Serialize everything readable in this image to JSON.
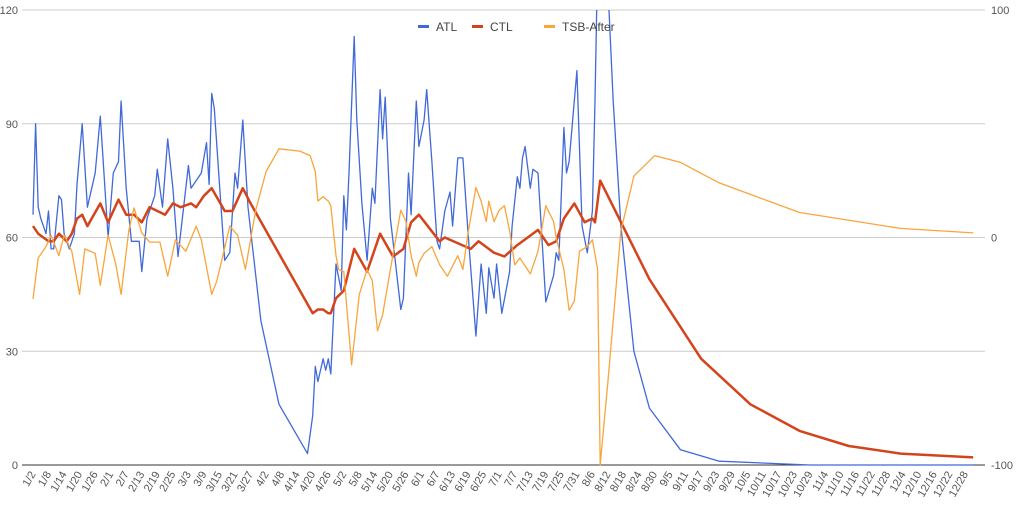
{
  "chart_data": {
    "type": "line",
    "title": "",
    "legend_position": "top",
    "x_unit": "day offset from 1/2",
    "x_tick_labels": [
      "1/2",
      "1/8",
      "1/14",
      "1/20",
      "1/26",
      "2/1",
      "2/7",
      "2/13",
      "2/19",
      "2/25",
      "3/3",
      "3/9",
      "3/15",
      "3/21",
      "3/27",
      "4/2",
      "4/8",
      "4/14",
      "4/20",
      "4/26",
      "5/2",
      "5/8",
      "5/14",
      "5/20",
      "5/26",
      "6/1",
      "6/7",
      "6/13",
      "6/19",
      "6/25",
      "7/1",
      "7/7",
      "7/13",
      "7/19",
      "7/25",
      "7/31",
      "8/6",
      "8/12",
      "8/18",
      "8/24",
      "8/30",
      "9/5",
      "9/11",
      "9/17",
      "9/23",
      "9/29",
      "10/5",
      "10/11",
      "10/17",
      "10/23",
      "10/29",
      "11/4",
      "11/10",
      "11/16",
      "11/22",
      "11/28",
      "12/4",
      "12/10",
      "12/16",
      "12/22",
      "12/28"
    ],
    "x_tick_step_days": 6,
    "y_left": {
      "ylim": [
        0,
        120
      ],
      "ticks": [
        "0",
        "30",
        "60",
        "90",
        "120"
      ],
      "tick_values": [
        0,
        30,
        60,
        90,
        120
      ]
    },
    "y_right": {
      "ylim": [
        -100,
        100
      ],
      "ticks": [
        "-100",
        "0",
        "100"
      ],
      "tick_values": [
        -100,
        0,
        100
      ]
    },
    "grid": true,
    "series": [
      {
        "name": "ATL",
        "axis": "left",
        "color": "#4169d8",
        "points": [
          [
            0,
            66
          ],
          [
            1,
            90
          ],
          [
            2,
            68
          ],
          [
            3,
            65
          ],
          [
            5,
            61
          ],
          [
            6,
            67
          ],
          [
            7,
            57
          ],
          [
            8,
            57
          ],
          [
            10,
            71
          ],
          [
            11,
            70
          ],
          [
            12,
            61
          ],
          [
            14,
            57
          ],
          [
            16,
            61
          ],
          [
            17,
            74
          ],
          [
            19,
            90
          ],
          [
            21,
            68
          ],
          [
            24,
            77
          ],
          [
            26,
            92
          ],
          [
            29,
            60
          ],
          [
            31,
            77
          ],
          [
            33,
            80
          ],
          [
            34,
            96
          ],
          [
            36,
            73
          ],
          [
            38,
            59
          ],
          [
            41,
            59
          ],
          [
            42,
            51
          ],
          [
            44,
            65
          ],
          [
            47,
            71
          ],
          [
            48,
            78
          ],
          [
            50,
            68
          ],
          [
            52,
            86
          ],
          [
            54,
            73
          ],
          [
            56,
            55
          ],
          [
            60,
            79
          ],
          [
            61,
            73
          ],
          [
            63,
            75
          ],
          [
            65,
            77
          ],
          [
            67,
            85
          ],
          [
            68,
            74
          ],
          [
            69,
            98
          ],
          [
            70,
            94
          ],
          [
            74,
            54
          ],
          [
            76,
            56
          ],
          [
            78,
            77
          ],
          [
            79,
            73
          ],
          [
            81,
            91
          ],
          [
            83,
            68
          ],
          [
            88,
            38
          ],
          [
            95,
            16
          ],
          [
            106,
            3
          ],
          [
            108,
            13
          ],
          [
            109,
            26
          ],
          [
            110,
            22
          ],
          [
            112,
            28
          ],
          [
            113,
            25
          ],
          [
            114,
            28
          ],
          [
            115,
            24
          ],
          [
            117,
            53
          ],
          [
            119,
            46
          ],
          [
            120,
            71
          ],
          [
            121,
            62
          ],
          [
            122,
            77
          ],
          [
            124,
            113
          ],
          [
            125,
            91
          ],
          [
            127,
            69
          ],
          [
            129,
            54
          ],
          [
            131,
            73
          ],
          [
            132,
            69
          ],
          [
            134,
            99
          ],
          [
            135,
            86
          ],
          [
            136,
            97
          ],
          [
            138,
            65
          ],
          [
            142,
            41
          ],
          [
            143,
            44
          ],
          [
            145,
            77
          ],
          [
            146,
            66
          ],
          [
            148,
            96
          ],
          [
            149,
            84
          ],
          [
            151,
            91
          ],
          [
            152,
            99
          ],
          [
            154,
            80
          ],
          [
            156,
            59
          ],
          [
            157,
            57
          ],
          [
            159,
            67
          ],
          [
            161,
            72
          ],
          [
            162,
            63
          ],
          [
            164,
            81
          ],
          [
            166,
            81
          ],
          [
            168,
            61
          ],
          [
            171,
            34
          ],
          [
            173,
            53
          ],
          [
            175,
            40
          ],
          [
            176,
            52
          ],
          [
            178,
            44
          ],
          [
            179,
            53
          ],
          [
            181,
            40
          ],
          [
            184,
            51
          ],
          [
            185,
            63
          ],
          [
            187,
            76
          ],
          [
            188,
            73
          ],
          [
            189,
            81
          ],
          [
            190,
            84
          ],
          [
            192,
            73
          ],
          [
            193,
            78
          ],
          [
            195,
            77
          ],
          [
            198,
            43
          ],
          [
            201,
            50
          ],
          [
            202,
            56
          ],
          [
            203,
            54
          ],
          [
            205,
            89
          ],
          [
            206,
            77
          ],
          [
            207,
            80
          ],
          [
            209,
            96
          ],
          [
            210,
            104
          ],
          [
            212,
            63
          ],
          [
            214,
            56
          ],
          [
            216,
            67
          ],
          [
            217,
            96
          ],
          [
            219,
            170
          ],
          [
            224,
            96
          ],
          [
            227,
            63
          ],
          [
            232,
            30
          ],
          [
            238,
            15
          ],
          [
            250,
            4
          ],
          [
            265,
            1
          ],
          [
            300,
            0
          ],
          [
            363,
            0
          ]
        ]
      },
      {
        "name": "CTL",
        "axis": "left",
        "color": "#d4441c",
        "points": [
          [
            0,
            63
          ],
          [
            2,
            61
          ],
          [
            6,
            59
          ],
          [
            8,
            59
          ],
          [
            10,
            61
          ],
          [
            13,
            59
          ],
          [
            15,
            61
          ],
          [
            17,
            65
          ],
          [
            19,
            66
          ],
          [
            21,
            63
          ],
          [
            26,
            69
          ],
          [
            29,
            64
          ],
          [
            33,
            70
          ],
          [
            36,
            66
          ],
          [
            39,
            66
          ],
          [
            42,
            64
          ],
          [
            45,
            68
          ],
          [
            51,
            66
          ],
          [
            54,
            69
          ],
          [
            57,
            68
          ],
          [
            61,
            69
          ],
          [
            63,
            68
          ],
          [
            66,
            71
          ],
          [
            69,
            73
          ],
          [
            74,
            67
          ],
          [
            77,
            67
          ],
          [
            81,
            73
          ],
          [
            84,
            69
          ],
          [
            108,
            40
          ],
          [
            110,
            41
          ],
          [
            112,
            41
          ],
          [
            114,
            40
          ],
          [
            115,
            40
          ],
          [
            117,
            44
          ],
          [
            120,
            46
          ],
          [
            124,
            57
          ],
          [
            129,
            51
          ],
          [
            134,
            61
          ],
          [
            139,
            55
          ],
          [
            143,
            57
          ],
          [
            146,
            64
          ],
          [
            149,
            66
          ],
          [
            157,
            59
          ],
          [
            159,
            60
          ],
          [
            169,
            57
          ],
          [
            172,
            59
          ],
          [
            178,
            56
          ],
          [
            182,
            55
          ],
          [
            187,
            58
          ],
          [
            191,
            60
          ],
          [
            195,
            62
          ],
          [
            199,
            58
          ],
          [
            202,
            59
          ],
          [
            205,
            65
          ],
          [
            209,
            69
          ],
          [
            213,
            64
          ],
          [
            216,
            65
          ],
          [
            217,
            64
          ],
          [
            219,
            75
          ],
          [
            238,
            49
          ],
          [
            258,
            28
          ],
          [
            277,
            16
          ],
          [
            296,
            9
          ],
          [
            315,
            5
          ],
          [
            335,
            3
          ],
          [
            363,
            2
          ]
        ]
      },
      {
        "name": "TSB-After",
        "axis": "right",
        "color": "#f9a53b",
        "points": [
          [
            0,
            -27
          ],
          [
            2,
            -9
          ],
          [
            5,
            -4
          ],
          [
            7,
            1
          ],
          [
            10,
            -8
          ],
          [
            12,
            1
          ],
          [
            15,
            -6
          ],
          [
            18,
            -25
          ],
          [
            20,
            -5
          ],
          [
            24,
            -7
          ],
          [
            26,
            -21
          ],
          [
            29,
            1
          ],
          [
            32,
            -12
          ],
          [
            34,
            -25
          ],
          [
            37,
            3
          ],
          [
            39,
            13
          ],
          [
            42,
            2
          ],
          [
            45,
            -2
          ],
          [
            49,
            -2
          ],
          [
            52,
            -17
          ],
          [
            55,
            -1
          ],
          [
            59,
            -6
          ],
          [
            63,
            5
          ],
          [
            65,
            -1
          ],
          [
            69,
            -25
          ],
          [
            71,
            -19
          ],
          [
            76,
            5
          ],
          [
            79,
            1
          ],
          [
            82,
            -14
          ],
          [
            86,
            12
          ],
          [
            90,
            29
          ],
          [
            95,
            39
          ],
          [
            103,
            38
          ],
          [
            107,
            36
          ],
          [
            109,
            29
          ],
          [
            110,
            16
          ],
          [
            112,
            18
          ],
          [
            114,
            16
          ],
          [
            115,
            14
          ],
          [
            117,
            -8
          ],
          [
            118,
            -14
          ],
          [
            120,
            -15
          ],
          [
            123,
            -56
          ],
          [
            126,
            -25
          ],
          [
            129,
            -14
          ],
          [
            131,
            -19
          ],
          [
            133,
            -41
          ],
          [
            135,
            -34
          ],
          [
            138,
            -14
          ],
          [
            142,
            12
          ],
          [
            144,
            7
          ],
          [
            146,
            -8
          ],
          [
            148,
            -17
          ],
          [
            149,
            -11
          ],
          [
            151,
            -7
          ],
          [
            154,
            -4
          ],
          [
            157,
            -12
          ],
          [
            160,
            -17
          ],
          [
            164,
            -8
          ],
          [
            166,
            -14
          ],
          [
            168,
            2
          ],
          [
            171,
            22
          ],
          [
            173,
            16
          ],
          [
            175,
            7
          ],
          [
            176,
            16
          ],
          [
            178,
            7
          ],
          [
            180,
            12
          ],
          [
            182,
            14
          ],
          [
            184,
            3
          ],
          [
            186,
            -12
          ],
          [
            188,
            -9
          ],
          [
            192,
            -16
          ],
          [
            195,
            -6
          ],
          [
            198,
            14
          ],
          [
            201,
            7
          ],
          [
            202,
            0
          ],
          [
            205,
            -14
          ],
          [
            207,
            -32
          ],
          [
            209,
            -28
          ],
          [
            211,
            -6
          ],
          [
            214,
            -4
          ],
          [
            216,
            -1
          ],
          [
            218,
            -14
          ],
          [
            219,
            -100
          ],
          [
            222,
            -63
          ],
          [
            227,
            3
          ],
          [
            232,
            27
          ],
          [
            240,
            36
          ],
          [
            250,
            33
          ],
          [
            265,
            24
          ],
          [
            296,
            11
          ],
          [
            335,
            4
          ],
          [
            363,
            2
          ]
        ]
      }
    ]
  }
}
